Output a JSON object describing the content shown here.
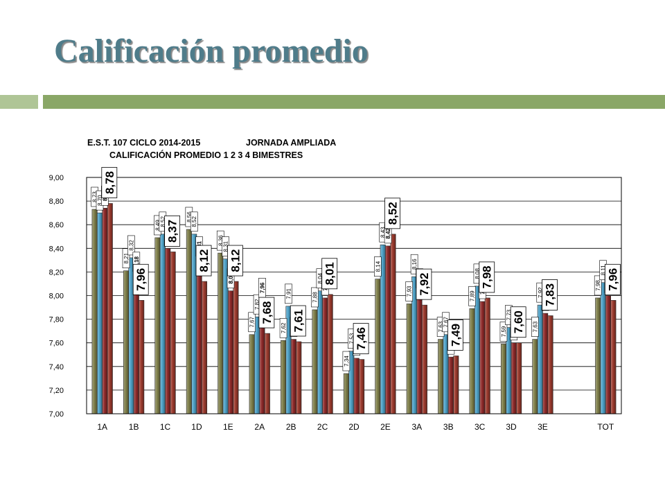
{
  "slide": {
    "title": "Calificación promedio"
  },
  "colors": {
    "title": "#4f7c8a",
    "band_light": "#afc596",
    "band_dark": "#8aa767"
  },
  "chart_data": {
    "type": "bar",
    "title": [
      "E.S.T. 107 CICLO 2014-2015",
      "JORNADA AMPLIADA"
    ],
    "subtitle": "CALIFICACIÓN PROMEDIO 1 2 3 4 BIMESTRES",
    "categories": [
      "1A",
      "1B",
      "1C",
      "1D",
      "1E",
      "2A",
      "2B",
      "2C",
      "2D",
      "2E",
      "3A",
      "3B",
      "3C",
      "3D",
      "3E",
      "",
      "TOT"
    ],
    "series": [
      {
        "color": "#7f7f4a",
        "values": [
          8.73,
          8.21,
          8.49,
          8.56,
          8.36,
          7.67,
          7.62,
          7.88,
          7.34,
          8.14,
          7.93,
          7.63,
          7.89,
          7.59,
          7.63,
          null,
          7.98
        ]
      },
      {
        "color": "#4ea2c8",
        "values": [
          8.7,
          8.32,
          8.52,
          8.52,
          8.31,
          7.82,
          7.91,
          8.04,
          7.53,
          8.43,
          8.16,
          7.67,
          8.08,
          7.73,
          7.92,
          null,
          8.11
        ]
      },
      {
        "color": "#8e2a2a",
        "values": [
          8.74,
          8.18,
          8.4,
          8.31,
          8.04,
          7.96,
          7.63,
          7.98,
          7.47,
          8.42,
          8.04,
          7.48,
          7.95,
          7.6,
          7.85,
          null,
          8.0
        ]
      },
      {
        "color": "#9c3b2e",
        "values": [
          8.78,
          7.96,
          8.37,
          8.12,
          8.12,
          7.68,
          7.61,
          8.01,
          7.46,
          8.52,
          7.92,
          7.49,
          7.98,
          7.6,
          7.83,
          null,
          7.96
        ]
      }
    ],
    "ylim": [
      7.0,
      9.0
    ],
    "y_tick_labels": [
      "7,00",
      "7,20",
      "7,40",
      "7,60",
      "7,80",
      "8,00",
      "8,20",
      "8,40",
      "8,60",
      "8,80",
      "9,00"
    ],
    "grid": true,
    "legend": "none",
    "data_labels": true
  }
}
